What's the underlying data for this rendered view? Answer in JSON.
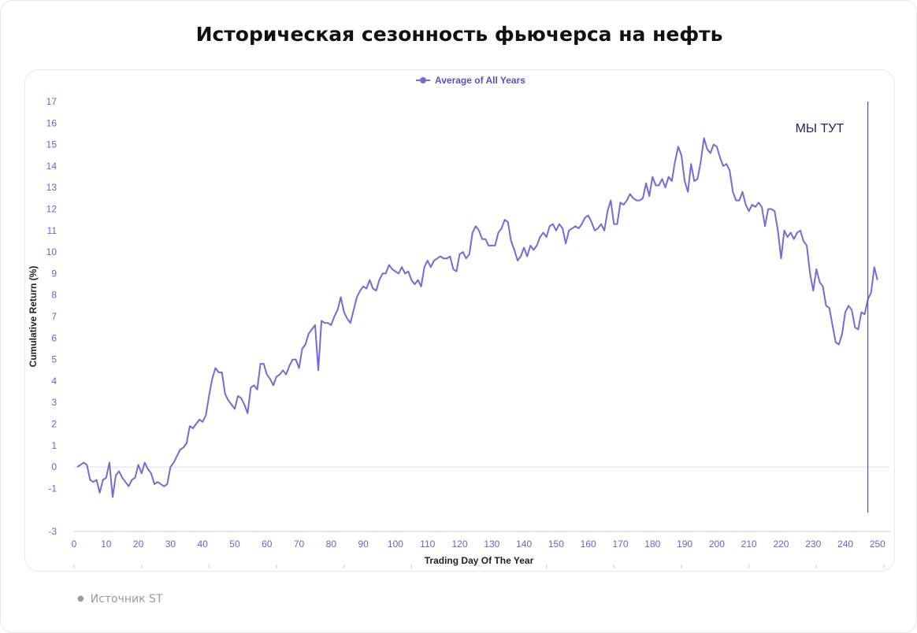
{
  "page": {
    "title": "Историческая сезонность фьючерса на нефть",
    "source_text": "Источник ST"
  },
  "colors": {
    "series": "#7b68d6",
    "axis_text": "#6b5fd1",
    "axis_title": "#222222",
    "zero_line": "#dcdcf2",
    "marker_line": "#5a4fb8",
    "annotation": "#222266"
  },
  "chart_data": {
    "type": "line",
    "title": "Историческая сезонность фьючерса на нефть",
    "xlabel": "Trading Day Of The Year",
    "ylabel": "Cumulative Return (%)",
    "xlim": [
      0,
      252
    ],
    "ylim": [
      -3,
      17
    ],
    "x_ticks": [
      0,
      10,
      20,
      30,
      40,
      50,
      60,
      70,
      80,
      90,
      100,
      110,
      120,
      130,
      140,
      150,
      160,
      170,
      180,
      190,
      200,
      210,
      220,
      230,
      240,
      250
    ],
    "y_ticks": [
      -3,
      -1,
      0,
      1,
      2,
      3,
      4,
      5,
      6,
      7,
      8,
      9,
      10,
      11,
      12,
      13,
      14,
      15,
      16,
      17
    ],
    "grid": false,
    "legend": {
      "position": "top-center",
      "entries": [
        "Average of All Years"
      ]
    },
    "annotation": {
      "text": "МЫ ТУТ",
      "x": 247
    },
    "series": [
      {
        "name": "Average of All Years",
        "x_start": 1,
        "x_step": 1,
        "values": [
          0.0,
          0.1,
          0.2,
          0.1,
          -0.6,
          -0.7,
          -0.6,
          -1.2,
          -0.6,
          -0.5,
          0.2,
          -1.4,
          -0.4,
          -0.2,
          -0.5,
          -0.7,
          -0.9,
          -0.6,
          -0.5,
          0.1,
          -0.3,
          0.2,
          -0.1,
          -0.3,
          -0.8,
          -0.7,
          -0.8,
          -0.9,
          -0.8,
          0.0,
          0.2,
          0.5,
          0.8,
          0.9,
          1.1,
          1.9,
          1.8,
          2.0,
          2.2,
          2.1,
          2.4,
          3.3,
          4.1,
          4.6,
          4.4,
          4.4,
          3.4,
          3.1,
          2.9,
          2.7,
          3.3,
          3.2,
          2.9,
          2.5,
          3.7,
          3.8,
          3.6,
          4.8,
          4.8,
          4.3,
          4.1,
          3.8,
          4.2,
          4.3,
          4.5,
          4.3,
          4.7,
          5.0,
          5.0,
          4.6,
          5.5,
          5.7,
          6.2,
          6.4,
          6.6,
          4.5,
          6.8,
          6.7,
          6.7,
          6.6,
          7.0,
          7.3,
          7.9,
          7.2,
          6.9,
          6.7,
          7.3,
          7.9,
          8.2,
          8.4,
          8.3,
          8.7,
          8.3,
          8.2,
          8.7,
          9.0,
          9.0,
          9.4,
          9.2,
          9.1,
          9.0,
          9.3,
          9.0,
          9.1,
          8.7,
          8.5,
          8.7,
          8.4,
          9.3,
          9.6,
          9.3,
          9.6,
          9.7,
          9.8,
          9.7,
          9.7,
          9.8,
          9.2,
          9.1,
          9.9,
          10.0,
          9.7,
          9.9,
          10.9,
          11.2,
          11.0,
          10.6,
          10.6,
          10.3,
          10.3,
          10.3,
          10.9,
          11.1,
          11.5,
          11.4,
          10.5,
          10.1,
          9.6,
          9.8,
          10.2,
          9.8,
          10.3,
          10.1,
          10.3,
          10.7,
          10.9,
          10.7,
          11.2,
          11.3,
          11.0,
          11.3,
          11.1,
          10.4,
          11.0,
          11.1,
          11.2,
          11.1,
          11.3,
          11.6,
          11.7,
          11.4,
          11.0,
          11.1,
          11.3,
          11.0,
          11.9,
          12.4,
          11.3,
          11.3,
          12.3,
          12.2,
          12.4,
          12.7,
          12.5,
          12.4,
          12.4,
          12.5,
          13.2,
          12.6,
          13.5,
          13.1,
          13.1,
          13.4,
          13.0,
          13.5,
          13.3,
          14.2,
          14.9,
          14.5,
          13.3,
          12.8,
          14.1,
          13.3,
          13.4,
          14.2,
          15.3,
          14.8,
          14.6,
          15.0,
          14.9,
          14.4,
          14.0,
          14.1,
          13.8,
          12.8,
          12.4,
          12.4,
          12.8,
          12.2,
          11.9,
          12.2,
          12.1,
          12.3,
          12.1,
          11.2,
          12.0,
          12.0,
          11.9,
          11.0,
          9.7,
          11.0,
          10.7,
          10.9,
          10.6,
          10.9,
          11.0,
          10.5,
          10.3,
          9.0,
          8.2,
          9.2,
          8.6,
          8.4,
          7.5,
          7.4,
          6.6,
          5.8,
          5.7,
          6.2,
          7.2,
          7.5,
          7.3,
          6.5,
          6.4,
          7.2,
          7.1,
          7.8,
          8.1,
          9.3,
          8.7
        ]
      }
    ]
  }
}
